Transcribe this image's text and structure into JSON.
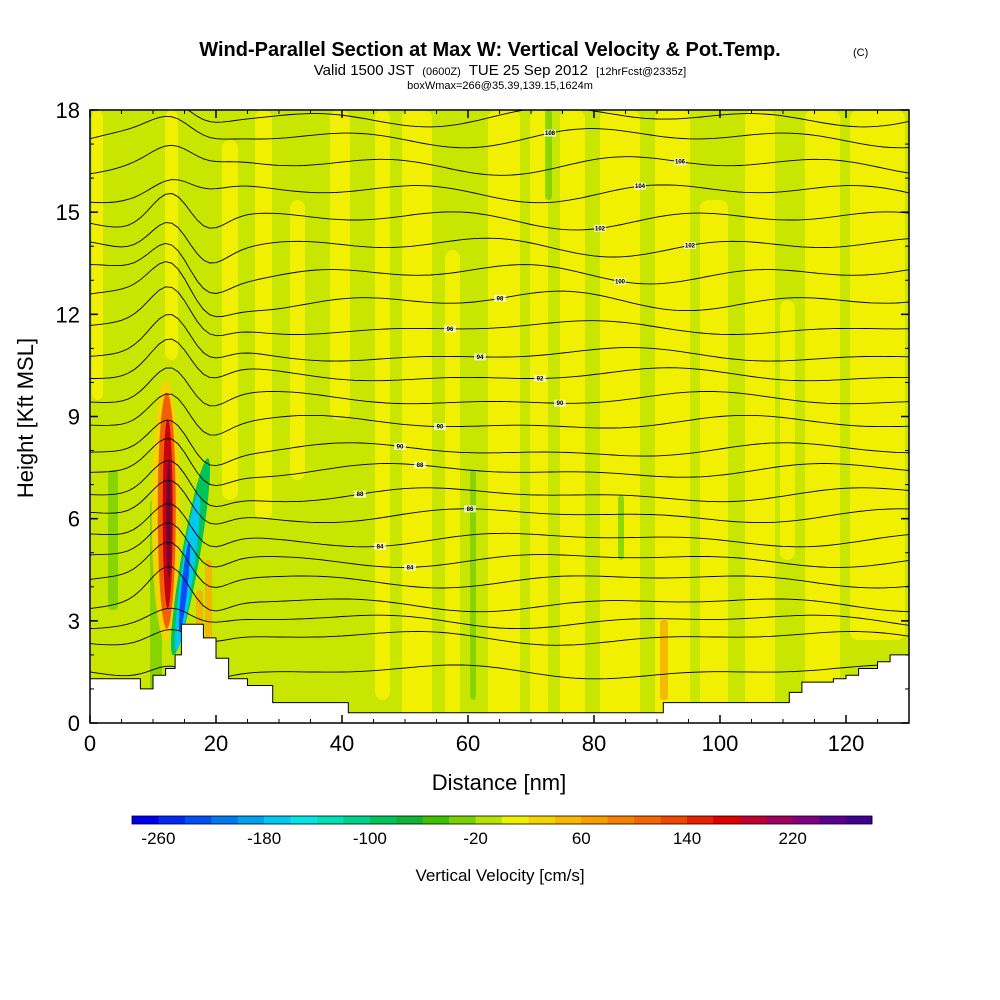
{
  "chart_data": {
    "type": "heatmap",
    "title": "Wind-Parallel Section at Max W: Vertical Velocity & Pot.Temp.",
    "title_mark": "(C)",
    "subtitle_parts": [
      "Valid 1500 JST",
      "(0600Z)",
      "TUE 25 Sep 2012",
      "[12hrFcst@2335z]"
    ],
    "subtitle2": "boxWmax=266@35.39,139.15,1624m",
    "xlabel": "Distance [nm]",
    "ylabel": "Height [Kft MSL]",
    "xlim": [
      0,
      130
    ],
    "ylim": [
      0,
      18
    ],
    "x_ticks": [
      "0",
      "20",
      "40",
      "60",
      "80",
      "100",
      "120"
    ],
    "y_ticks": [
      "0",
      "3",
      "6",
      "9",
      "12",
      "15",
      "18"
    ],
    "colorbar": {
      "label": "Vertical Velocity [cm/s]",
      "tick_labels": [
        "-260",
        "-180",
        "-100",
        "-20",
        "60",
        "140",
        "220"
      ],
      "min": -280,
      "max": 280,
      "step": 20,
      "colors": [
        "#0000f0",
        "#0028f5",
        "#0050f5",
        "#0078f0",
        "#00a0f0",
        "#00c8f0",
        "#00e6e6",
        "#00e0b4",
        "#00d28c",
        "#00c35a",
        "#10b432",
        "#3cc000",
        "#78d000",
        "#b4e400",
        "#f0f000",
        "#f4d400",
        "#f8b800",
        "#f89c00",
        "#f88000",
        "#f46400",
        "#f04800",
        "#e82000",
        "#e00000",
        "#c00030",
        "#a00060",
        "#800080",
        "#5a0090",
        "#400090"
      ],
      "range_text": "-280 to 280 cm/s in 20 cm/s intervals"
    },
    "background_velocity_cms": "-20 to 0 (pale green) with 0 to 20 (yellow) bands",
    "updraft_peak": {
      "x_nm": 12.5,
      "height_kft": 6,
      "velocity_cms": 250
    },
    "downdraft_peak": {
      "x_nm": 15,
      "height_kft": 4,
      "velocity_cms": -200
    },
    "terrain_height_kft": [
      {
        "x": 0,
        "h": 1.3
      },
      {
        "x": 6,
        "h": 1.3
      },
      {
        "x": 8,
        "h": 1.0
      },
      {
        "x": 10,
        "h": 1.4
      },
      {
        "x": 12,
        "h": 1.6
      },
      {
        "x": 13.5,
        "h": 2.0
      },
      {
        "x": 14.5,
        "h": 2.9
      },
      {
        "x": 17,
        "h": 2.9
      },
      {
        "x": 18,
        "h": 2.5
      },
      {
        "x": 20,
        "h": 1.9
      },
      {
        "x": 22,
        "h": 1.3
      },
      {
        "x": 25,
        "h": 1.1
      },
      {
        "x": 29,
        "h": 0.6
      },
      {
        "x": 40,
        "h": 0.6
      },
      {
        "x": 41,
        "h": 0.3
      },
      {
        "x": 88,
        "h": 0.3
      },
      {
        "x": 91,
        "h": 0.6
      },
      {
        "x": 109,
        "h": 0.6
      },
      {
        "x": 111,
        "h": 0.9
      },
      {
        "x": 113,
        "h": 1.2
      },
      {
        "x": 118,
        "h": 1.3
      },
      {
        "x": 120,
        "h": 1.4
      },
      {
        "x": 122,
        "h": 1.6
      },
      {
        "x": 125,
        "h": 1.8
      },
      {
        "x": 127,
        "h": 2.0
      },
      {
        "x": 130,
        "h": 2.0
      }
    ],
    "isentropes": [
      {
        "y": 1.5,
        "labels": []
      },
      {
        "y": 2.5,
        "labels": []
      },
      {
        "y": 3.0,
        "labels": []
      },
      {
        "y": 3.5,
        "labels": []
      },
      {
        "y": 4.2,
        "labels": []
      },
      {
        "y": 4.8,
        "labels": [
          "84"
        ]
      },
      {
        "y": 5.4,
        "labels": [
          "84"
        ]
      },
      {
        "y": 6.1,
        "labels": [
          "86"
        ]
      },
      {
        "y": 6.7,
        "labels": [
          "88"
        ]
      },
      {
        "y": 7.4,
        "labels": [
          "88"
        ]
      },
      {
        "y": 8.0,
        "labels": [
          "90"
        ]
      },
      {
        "y": 8.8,
        "labels": [
          "90"
        ]
      },
      {
        "y": 9.5,
        "labels": [
          "90"
        ]
      },
      {
        "y": 10.2,
        "labels": [
          "92"
        ]
      },
      {
        "y": 10.8,
        "labels": [
          "94"
        ]
      },
      {
        "y": 11.6,
        "labels": [
          "96"
        ]
      },
      {
        "y": 12.4,
        "labels": [
          "98"
        ]
      },
      {
        "y": 13.2,
        "labels": [
          "100"
        ]
      },
      {
        "y": 14.0,
        "labels": [
          "102"
        ]
      },
      {
        "y": 14.8,
        "labels": [
          "102"
        ]
      },
      {
        "y": 15.6,
        "labels": [
          "104"
        ]
      },
      {
        "y": 16.4,
        "labels": [
          "106"
        ]
      },
      {
        "y": 17.2,
        "labels": [
          "108"
        ]
      },
      {
        "y": 17.8,
        "labels": []
      }
    ]
  }
}
